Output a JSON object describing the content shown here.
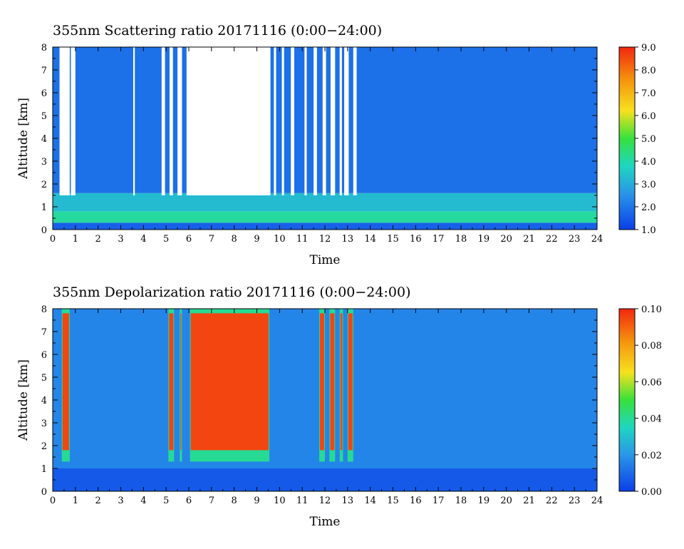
{
  "chart_data": [
    {
      "type": "heatmap",
      "title": "355nm Scattering ratio  20171116 (0:00−24:00)",
      "xlabel": "Time",
      "ylabel": "Altitude [km]",
      "xlim": [
        0,
        24
      ],
      "ylim": [
        0,
        8
      ],
      "x_ticks": [
        "0",
        "1",
        "2",
        "3",
        "4",
        "5",
        "6",
        "7",
        "8",
        "9",
        "10",
        "11",
        "12",
        "13",
        "14",
        "15",
        "16",
        "17",
        "18",
        "19",
        "20",
        "21",
        "22",
        "23",
        "24"
      ],
      "y_ticks": [
        "0",
        "1",
        "2",
        "3",
        "4",
        "5",
        "6",
        "7",
        "8"
      ],
      "colorbar": {
        "min": 1.0,
        "max": 9.0,
        "ticks": [
          "1.0",
          "2.0",
          "3.0",
          "4.0",
          "5.0",
          "6.0",
          "7.0",
          "8.0",
          "9.0"
        ]
      },
      "colors": {
        "low": "#0b3fe8",
        "mid_low": "#2a96e8",
        "mid": "#1fd6c0",
        "mid_high": "#37e13b",
        "high": "#f7e11e",
        "max": "#f2270f"
      },
      "layers": [
        {
          "alt": [
            0.0,
            0.3
          ],
          "value": 1.6
        },
        {
          "alt": [
            0.3,
            0.8
          ],
          "value": 4.1
        },
        {
          "alt": [
            0.8,
            1.6
          ],
          "value": 3.3
        },
        {
          "alt": [
            1.6,
            8.0
          ],
          "value": 1.9
        }
      ],
      "blank_periods_h": [
        [
          0.3,
          0.75
        ],
        [
          0.8,
          1.0
        ],
        [
          3.55,
          3.62
        ],
        [
          4.8,
          4.95
        ],
        [
          5.15,
          5.3
        ],
        [
          5.5,
          5.7
        ],
        [
          5.9,
          9.6
        ],
        [
          9.75,
          9.85
        ],
        [
          10.1,
          10.2
        ],
        [
          10.5,
          10.65
        ],
        [
          11.1,
          11.2
        ],
        [
          11.5,
          11.65
        ],
        [
          11.9,
          12.05
        ],
        [
          12.25,
          12.45
        ],
        [
          12.65,
          12.75
        ],
        [
          12.85,
          13.05
        ],
        [
          13.25,
          13.4
        ]
      ]
    },
    {
      "type": "heatmap",
      "title": "355nm Depolarization ratio  20171116 (0:00−24:00)",
      "xlabel": "Time",
      "ylabel": "Altitude [km]",
      "xlim": [
        0,
        24
      ],
      "ylim": [
        0,
        8
      ],
      "x_ticks": [
        "0",
        "1",
        "2",
        "3",
        "4",
        "5",
        "6",
        "7",
        "8",
        "9",
        "10",
        "11",
        "12",
        "13",
        "14",
        "15",
        "16",
        "17",
        "18",
        "19",
        "20",
        "21",
        "22",
        "23",
        "24"
      ],
      "y_ticks": [
        "0",
        "1",
        "2",
        "3",
        "4",
        "5",
        "6",
        "7",
        "8"
      ],
      "colorbar": {
        "min": 0.0,
        "max": 0.1,
        "ticks": [
          "0.00",
          "0.02",
          "0.04",
          "0.06",
          "0.08",
          "0.10"
        ]
      },
      "colors": {
        "low": "#0b3fe8",
        "mid_low": "#2a96e8",
        "mid": "#1fd6c0",
        "mid_high": "#37e13b",
        "high": "#f7e11e",
        "max": "#f2270f"
      },
      "layers": [
        {
          "alt": [
            0.0,
            1.0
          ],
          "value": 0.006
        },
        {
          "alt": [
            1.0,
            8.0
          ],
          "value": 0.016
        }
      ],
      "high_periods_h": [
        [
          0.4,
          0.75
        ],
        [
          5.1,
          5.35
        ],
        [
          5.6,
          5.7
        ],
        [
          6.05,
          9.55
        ],
        [
          11.75,
          12.0
        ],
        [
          12.2,
          12.45
        ],
        [
          12.65,
          12.8
        ],
        [
          13.0,
          13.25
        ]
      ]
    }
  ]
}
